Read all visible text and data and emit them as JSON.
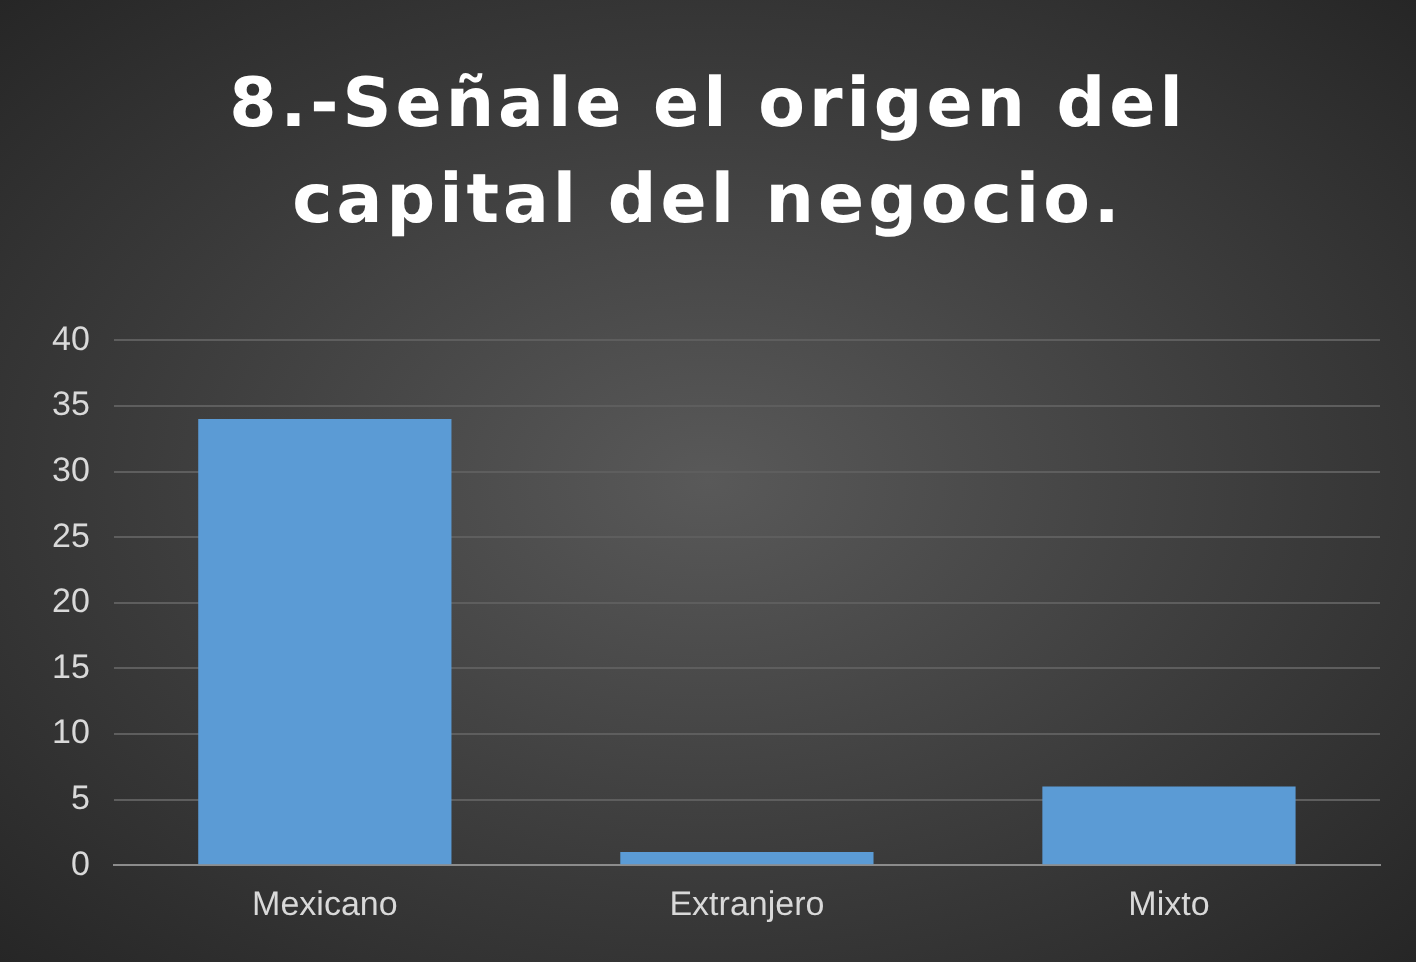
{
  "chart_data": {
    "type": "bar",
    "title": "8.-Señale el origen del capital del negocio.",
    "categories": [
      "Mexicano",
      "Extranjero",
      "Mixto"
    ],
    "values": [
      34,
      1,
      6
    ],
    "color": "#5b9bd5",
    "ylim": [
      0,
      40
    ],
    "yticks": [
      0,
      5,
      10,
      15,
      20,
      25,
      30,
      35,
      40
    ],
    "grid": "y"
  }
}
